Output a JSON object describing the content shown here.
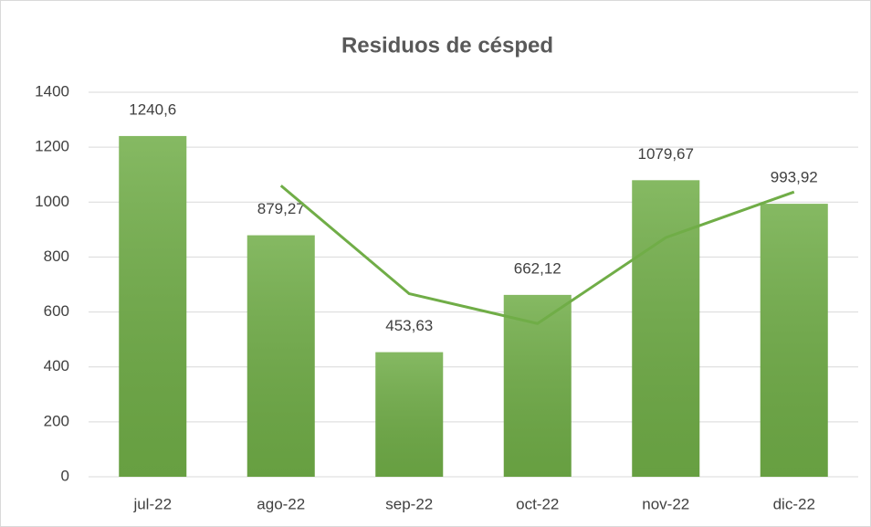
{
  "chart_data": {
    "type": "bar",
    "title": "Residuos de césped",
    "categories": [
      "jul-22",
      "ago-22",
      "sep-22",
      "oct-22",
      "nov-22",
      "dic-22"
    ],
    "values": [
      1240.6,
      879.27,
      453.63,
      662.12,
      1079.67,
      993.92
    ],
    "value_labels": [
      "1240,6",
      "879,27",
      "453,63",
      "662,12",
      "1079,67",
      "993,92"
    ],
    "color": "#70ad47",
    "series": [
      {
        "type": "line",
        "color": "#70ad47",
        "values": [
          null,
          1059.94,
          666.45,
          557.88,
          870.9,
          1036.8
        ]
      }
    ],
    "ylim": [
      0,
      1400
    ],
    "yticks": [
      0,
      200,
      400,
      600,
      800,
      1000,
      1200,
      1400
    ],
    "grid": true
  }
}
